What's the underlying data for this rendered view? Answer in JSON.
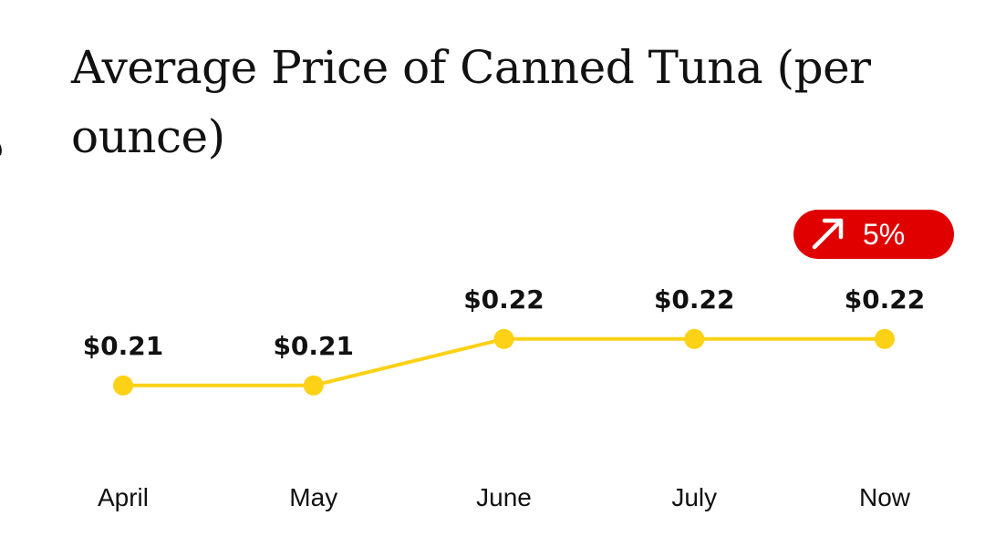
{
  "chart_data": {
    "type": "line",
    "title": "Average Price of Canned Tuna (per ounce)",
    "xlabel": "",
    "ylabel": "",
    "categories": [
      "April",
      "May",
      "June",
      "July",
      "Now"
    ],
    "series": [
      {
        "values": [
          0.212,
          0.212,
          0.222,
          0.222,
          0.222
        ],
        "labels": [
          "$0.21",
          "$0.21",
          "$0.22",
          "$0.22",
          "$0.22"
        ]
      }
    ],
    "grid": false,
    "legend": "none",
    "change_badge": {
      "text": "5%",
      "direction": "up",
      "icon": "arrow-up-right-icon"
    },
    "colors": {
      "line": "#fcd116",
      "badge": "#e00000",
      "text": "#111111"
    }
  }
}
